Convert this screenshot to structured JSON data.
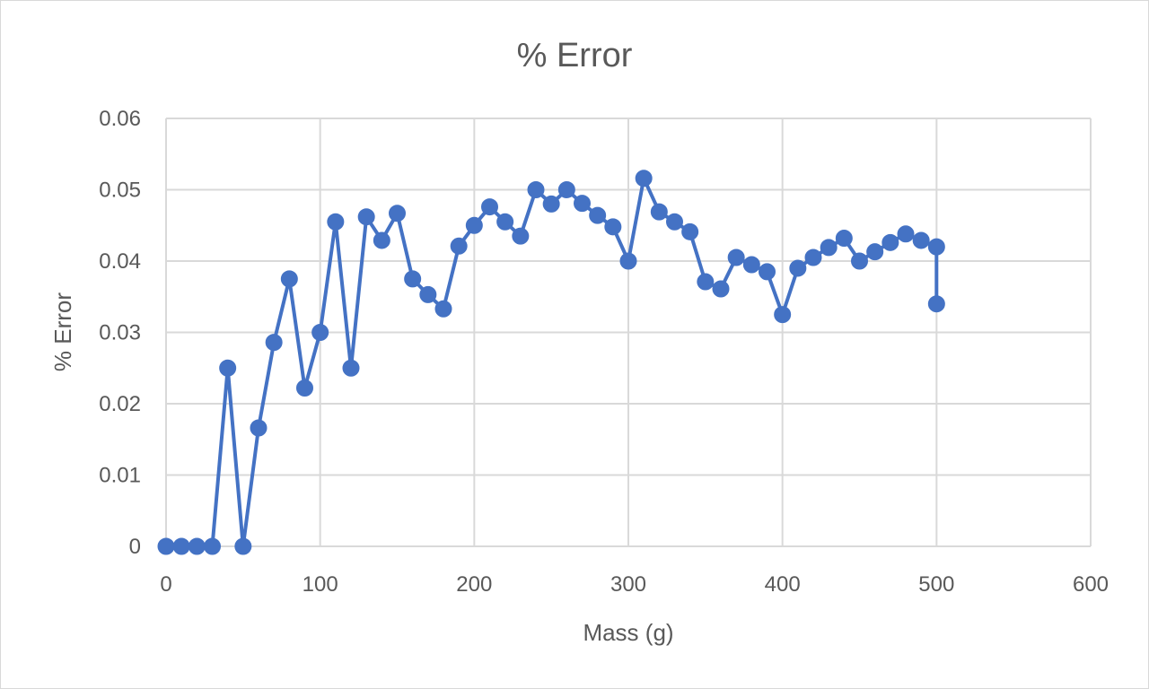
{
  "chart_data": {
    "type": "scatter",
    "title": "% Error",
    "xlabel": "Mass (g)",
    "ylabel": "% Error",
    "xlim": [
      0,
      600
    ],
    "ylim": [
      0,
      0.06
    ],
    "xticks": [
      0,
      100,
      200,
      300,
      400,
      500,
      600
    ],
    "yticks": [
      0,
      0.01,
      0.02,
      0.03,
      0.04,
      0.05,
      0.06
    ],
    "xtick_labels": [
      "0",
      "100",
      "200",
      "300",
      "400",
      "500",
      "600"
    ],
    "ytick_labels": [
      "0",
      "0.01",
      "0.02",
      "0.03",
      "0.04",
      "0.05",
      "0.06"
    ],
    "grid": true,
    "legend": "none",
    "line_style": "straight lines with markers",
    "series": [
      {
        "color": "#4472c4",
        "x": [
          0,
          10,
          20,
          30,
          40,
          50,
          60,
          70,
          80,
          90,
          100,
          110,
          120,
          130,
          140,
          150,
          160,
          170,
          180,
          190,
          200,
          210,
          220,
          230,
          240,
          250,
          260,
          270,
          280,
          290,
          300,
          310,
          320,
          330,
          340,
          350,
          360,
          370,
          380,
          390,
          400,
          410,
          420,
          430,
          440,
          450,
          460,
          470,
          480,
          490,
          500,
          500
        ],
        "y": [
          0,
          0,
          0,
          0,
          0.025,
          0,
          0.0166,
          0.0286,
          0.0375,
          0.0222,
          0.03,
          0.0455,
          0.025,
          0.0462,
          0.0429,
          0.0467,
          0.0375,
          0.0353,
          0.0333,
          0.0421,
          0.045,
          0.0476,
          0.0455,
          0.0435,
          0.05,
          0.048,
          0.05,
          0.0481,
          0.0464,
          0.0448,
          0.04,
          0.0516,
          0.0469,
          0.0455,
          0.0441,
          0.0371,
          0.0361,
          0.0405,
          0.0395,
          0.0385,
          0.0325,
          0.039,
          0.0405,
          0.0419,
          0.0432,
          0.04,
          0.0413,
          0.0426,
          0.0438,
          0.0429,
          0.042,
          0.034
        ]
      }
    ]
  }
}
